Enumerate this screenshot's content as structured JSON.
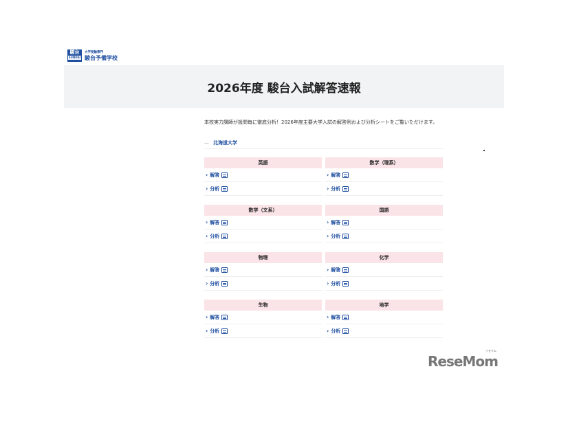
{
  "logo": {
    "mark": "駿台",
    "mark_sub": "SUNDAI",
    "sub": "大学受験専門",
    "main": "駿台予備学校"
  },
  "title": "2026年度 駿台入試解答速報",
  "intro": "本校実力講師が設問毎に徹底分析！2026年度主要大学入試の解答例および分析シートをご覧いただけます。",
  "university": {
    "dash": "—",
    "name": "北海道大学"
  },
  "subjects": [
    {
      "name": "英語",
      "links": [
        "解答",
        "分析"
      ]
    },
    {
      "name": "数学（理系）",
      "links": [
        "解答",
        "分析"
      ]
    },
    {
      "name": "数学（文系）",
      "links": [
        "解答",
        "分析"
      ]
    },
    {
      "name": "国語",
      "links": [
        "解答",
        "分析"
      ]
    },
    {
      "name": "物理",
      "links": [
        "解答",
        "分析"
      ]
    },
    {
      "name": "化学",
      "links": [
        "解答",
        "分析"
      ]
    },
    {
      "name": "生物",
      "links": [
        "解答",
        "分析"
      ]
    },
    {
      "name": "地学",
      "links": [
        "解答",
        "分析"
      ]
    }
  ],
  "watermark": {
    "name": "ReseMom",
    "ruby": "リセマム"
  },
  "colors": {
    "accent": "#1f4fa0",
    "subject_header": "#fbe4e8",
    "hero_bg": "#f2f3f4"
  }
}
